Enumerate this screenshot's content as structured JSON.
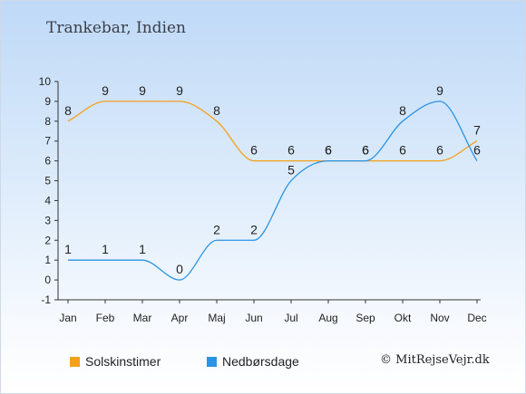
{
  "header": {
    "title": "Trankebar, Indien"
  },
  "chart_data": {
    "type": "line",
    "categories": [
      "Jan",
      "Feb",
      "Mar",
      "Apr",
      "Maj",
      "Jun",
      "Jul",
      "Aug",
      "Sep",
      "Okt",
      "Nov",
      "Dec"
    ],
    "ylim": [
      -1,
      10
    ],
    "yticks": [
      -1,
      0,
      1,
      2,
      3,
      4,
      5,
      6,
      7,
      8,
      9,
      10
    ],
    "grid": false,
    "legend_position": "bottom",
    "series": [
      {
        "name": "Solskinstimer",
        "color": "#f5a01a",
        "values": [
          8,
          9,
          9,
          9,
          8,
          6,
          6,
          6,
          6,
          6,
          6,
          7
        ]
      },
      {
        "name": "Nedbørsdage",
        "color": "#2a93e3",
        "values": [
          1,
          1,
          1,
          0,
          2,
          2,
          5,
          6,
          6,
          8,
          9,
          6
        ]
      }
    ]
  },
  "legend": {
    "sun_label": "Solskinstimer",
    "rain_label": "Nedbørsdage"
  },
  "footer": {
    "copyright": "© MitRejseVejr.dk"
  }
}
